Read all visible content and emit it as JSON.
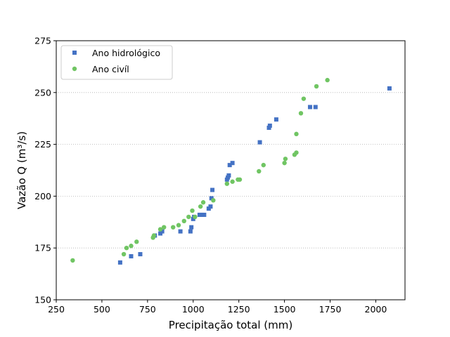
{
  "chart_data": {
    "type": "scatter",
    "xlabel": "Precipitação total (mm)",
    "ylabel": "Vazão Q (m³/s)",
    "xlim": [
      250,
      2160
    ],
    "ylim": [
      150,
      275
    ],
    "x_ticks": [
      250,
      500,
      750,
      1000,
      1250,
      1500,
      1750,
      2000
    ],
    "y_ticks": [
      150,
      175,
      200,
      225,
      250,
      275
    ],
    "grid": "horizontal dotted",
    "legend_position": "top-left",
    "series": [
      {
        "name": "Ano hidrológico",
        "marker": "square",
        "color": "#4472C4",
        "points": [
          [
            600,
            168
          ],
          [
            660,
            171
          ],
          [
            710,
            172
          ],
          [
            790,
            181
          ],
          [
            820,
            182
          ],
          [
            830,
            183
          ],
          [
            930,
            183
          ],
          [
            985,
            183
          ],
          [
            990,
            185
          ],
          [
            1000,
            189
          ],
          [
            1005,
            190
          ],
          [
            1035,
            191
          ],
          [
            1045,
            191
          ],
          [
            1060,
            191
          ],
          [
            1085,
            194
          ],
          [
            1095,
            195
          ],
          [
            1100,
            199
          ],
          [
            1105,
            203
          ],
          [
            1185,
            208
          ],
          [
            1190,
            209
          ],
          [
            1195,
            210
          ],
          [
            1200,
            215
          ],
          [
            1215,
            216
          ],
          [
            1365,
            226
          ],
          [
            1415,
            233
          ],
          [
            1420,
            234
          ],
          [
            1455,
            237
          ],
          [
            1640,
            243
          ],
          [
            1670,
            243
          ],
          [
            2075,
            252
          ]
        ]
      },
      {
        "name": "Ano civíl",
        "marker": "circle",
        "color": "#70C563",
        "points": [
          [
            340,
            169
          ],
          [
            620,
            172
          ],
          [
            635,
            175
          ],
          [
            660,
            176
          ],
          [
            690,
            178
          ],
          [
            780,
            180
          ],
          [
            785,
            181
          ],
          [
            820,
            184
          ],
          [
            840,
            185
          ],
          [
            890,
            185
          ],
          [
            920,
            186
          ],
          [
            950,
            188
          ],
          [
            975,
            190
          ],
          [
            995,
            193
          ],
          [
            1010,
            190
          ],
          [
            1040,
            195
          ],
          [
            1055,
            197
          ],
          [
            1110,
            198
          ],
          [
            1185,
            206
          ],
          [
            1215,
            207
          ],
          [
            1245,
            208
          ],
          [
            1255,
            208
          ],
          [
            1360,
            212
          ],
          [
            1385,
            215
          ],
          [
            1500,
            216
          ],
          [
            1505,
            218
          ],
          [
            1555,
            220
          ],
          [
            1565,
            221
          ],
          [
            1565,
            230
          ],
          [
            1590,
            240
          ],
          [
            1605,
            247
          ],
          [
            1675,
            253
          ],
          [
            1735,
            256
          ]
        ]
      }
    ]
  }
}
